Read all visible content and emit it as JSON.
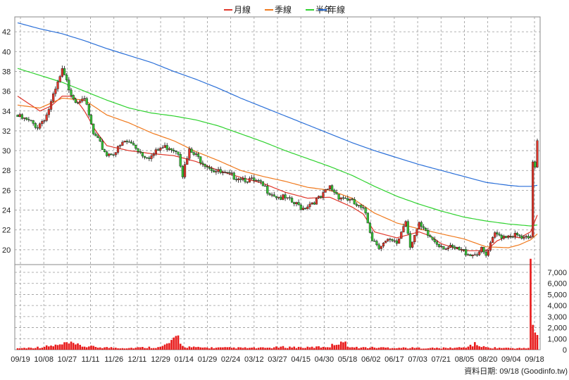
{
  "chart_data": {
    "type": "candlestick",
    "legend": [
      {
        "name": "月線",
        "color": "#e0362a"
      },
      {
        "name": "季線",
        "color": "#f07a1e"
      },
      {
        "name": "半年",
        "color": "#2fd22f"
      },
      {
        "name": "年線",
        "color": "#2a6fd8"
      }
    ],
    "price_axis": {
      "ticks": [
        "20",
        "22",
        "24",
        "26",
        "28",
        "30",
        "32",
        "34",
        "36",
        "38",
        "40",
        "42"
      ],
      "ylim": [
        18.5,
        43.5
      ],
      "side": "left"
    },
    "volume_axis": {
      "ticks": [
        "0",
        "1,000",
        "2,000",
        "3,000",
        "4,000",
        "5,000",
        "6,000",
        "7,000"
      ],
      "ylim": [
        0,
        7700
      ],
      "side": "right"
    },
    "x_ticks": [
      "09/19",
      "10/08",
      "10/27",
      "11/11",
      "11/26",
      "12/11",
      "12/29",
      "01/14",
      "01/29",
      "02/24",
      "03/12",
      "03/27",
      "04/15",
      "04/30",
      "05/18",
      "06/02",
      "06/17",
      "07/03",
      "07/21",
      "08/05",
      "08/20",
      "09/04",
      "09/18"
    ],
    "footer": "資料日期: 09/18 (Goodinfo.tw)",
    "close_anchors": [
      [
        0,
        33.6
      ],
      [
        6,
        33.0
      ],
      [
        9,
        32.6
      ],
      [
        13,
        33.8
      ],
      [
        16,
        35.6
      ],
      [
        20,
        38.2
      ],
      [
        23,
        36.5
      ],
      [
        26,
        35.2
      ],
      [
        29,
        35.6
      ],
      [
        31,
        34.6
      ],
      [
        34,
        31.8
      ],
      [
        37,
        30.8
      ],
      [
        40,
        29.8
      ],
      [
        44,
        30.1
      ],
      [
        48,
        31.1
      ],
      [
        52,
        30.8
      ],
      [
        56,
        29.8
      ],
      [
        60,
        29.6
      ],
      [
        64,
        30.4
      ],
      [
        68,
        30.6
      ],
      [
        72,
        30.1
      ],
      [
        74,
        27.8
      ],
      [
        77,
        30.1
      ],
      [
        80,
        29.6
      ],
      [
        84,
        28.9
      ],
      [
        88,
        28.2
      ],
      [
        92,
        27.8
      ],
      [
        96,
        27.6
      ],
      [
        100,
        27.5
      ],
      [
        104,
        27.2
      ],
      [
        108,
        26.9
      ],
      [
        112,
        26.2
      ],
      [
        116,
        25.6
      ],
      [
        120,
        25.3
      ],
      [
        124,
        24.8
      ],
      [
        128,
        24.4
      ],
      [
        132,
        25.0
      ],
      [
        136,
        25.4
      ],
      [
        140,
        26.5
      ],
      [
        144,
        25.6
      ],
      [
        148,
        25.3
      ],
      [
        152,
        24.6
      ],
      [
        156,
        23.9
      ],
      [
        159,
        21.3
      ],
      [
        162,
        20.6
      ],
      [
        166,
        21.0
      ],
      [
        170,
        20.8
      ],
      [
        174,
        23.2
      ],
      [
        176,
        20.7
      ],
      [
        180,
        22.6
      ],
      [
        184,
        21.6
      ],
      [
        188,
        20.9
      ],
      [
        192,
        20.4
      ],
      [
        196,
        20.2
      ],
      [
        200,
        20.0
      ],
      [
        204,
        19.7
      ],
      [
        208,
        20.1
      ],
      [
        210,
        19.5
      ],
      [
        214,
        21.7
      ],
      [
        218,
        21.6
      ],
      [
        222,
        21.7
      ],
      [
        226,
        21.3
      ],
      [
        230,
        21.2
      ],
      [
        231,
        29.2
      ],
      [
        232,
        28.6
      ],
      [
        233,
        31.4
      ]
    ],
    "volume_anchors": [
      [
        0,
        130
      ],
      [
        10,
        230
      ],
      [
        20,
        450
      ],
      [
        22,
        600
      ],
      [
        30,
        300
      ],
      [
        40,
        200
      ],
      [
        50,
        160
      ],
      [
        60,
        230
      ],
      [
        64,
        220
      ],
      [
        70,
        800
      ],
      [
        72,
        1200
      ],
      [
        74,
        300
      ],
      [
        80,
        200
      ],
      [
        90,
        180
      ],
      [
        100,
        170
      ],
      [
        110,
        160
      ],
      [
        120,
        250
      ],
      [
        130,
        200
      ],
      [
        140,
        300
      ],
      [
        145,
        800
      ],
      [
        150,
        200
      ],
      [
        160,
        200
      ],
      [
        170,
        180
      ],
      [
        180,
        160
      ],
      [
        190,
        150
      ],
      [
        200,
        200
      ],
      [
        205,
        500
      ],
      [
        210,
        200
      ],
      [
        220,
        150
      ],
      [
        228,
        130
      ],
      [
        229,
        200
      ],
      [
        230,
        7600
      ],
      [
        231,
        2000
      ],
      [
        232,
        1700
      ],
      [
        233,
        1100
      ]
    ],
    "moving_averages": [
      {
        "name": "月線",
        "color": "#e0362a",
        "points": [
          [
            0,
            35.5
          ],
          [
            10,
            34.0
          ],
          [
            15,
            34.5
          ],
          [
            20,
            35.5
          ],
          [
            25,
            35.5
          ],
          [
            30,
            34.0
          ],
          [
            35,
            32.0
          ],
          [
            40,
            30.5
          ],
          [
            50,
            30.0
          ],
          [
            60,
            29.7
          ],
          [
            70,
            29.5
          ],
          [
            80,
            28.9
          ],
          [
            90,
            28.0
          ],
          [
            100,
            27.3
          ],
          [
            110,
            26.7
          ],
          [
            120,
            25.8
          ],
          [
            130,
            25.2
          ],
          [
            140,
            25.3
          ],
          [
            150,
            24.3
          ],
          [
            155,
            23.6
          ],
          [
            160,
            21.8
          ],
          [
            170,
            21.2
          ],
          [
            175,
            21.5
          ],
          [
            180,
            21.8
          ],
          [
            185,
            21.4
          ],
          [
            190,
            20.6
          ],
          [
            200,
            19.9
          ],
          [
            210,
            19.9
          ],
          [
            215,
            20.9
          ],
          [
            220,
            21.4
          ],
          [
            225,
            21.2
          ],
          [
            230,
            21.8
          ],
          [
            233,
            23.5
          ]
        ]
      },
      {
        "name": "季線",
        "color": "#f07a1e",
        "points": [
          [
            0,
            34.6
          ],
          [
            10,
            34.3
          ],
          [
            20,
            35.3
          ],
          [
            30,
            35.1
          ],
          [
            40,
            33.6
          ],
          [
            50,
            32.8
          ],
          [
            60,
            31.8
          ],
          [
            70,
            31.0
          ],
          [
            80,
            29.9
          ],
          [
            90,
            29.0
          ],
          [
            100,
            28.0
          ],
          [
            110,
            27.4
          ],
          [
            120,
            26.9
          ],
          [
            130,
            26.3
          ],
          [
            140,
            26.0
          ],
          [
            150,
            25.2
          ],
          [
            160,
            23.7
          ],
          [
            170,
            22.7
          ],
          [
            180,
            22.1
          ],
          [
            190,
            21.6
          ],
          [
            200,
            21.1
          ],
          [
            210,
            20.3
          ],
          [
            220,
            20.2
          ],
          [
            225,
            20.5
          ],
          [
            230,
            21.0
          ],
          [
            233,
            21.6
          ]
        ]
      },
      {
        "name": "半年",
        "color": "#2fd22f",
        "points": [
          [
            0,
            38.3
          ],
          [
            10,
            37.6
          ],
          [
            20,
            36.9
          ],
          [
            30,
            36.0
          ],
          [
            40,
            35.1
          ],
          [
            50,
            34.3
          ],
          [
            60,
            33.8
          ],
          [
            70,
            33.5
          ],
          [
            80,
            33.1
          ],
          [
            90,
            32.5
          ],
          [
            100,
            31.7
          ],
          [
            110,
            30.9
          ],
          [
            120,
            30.0
          ],
          [
            130,
            29.2
          ],
          [
            140,
            28.4
          ],
          [
            150,
            27.5
          ],
          [
            160,
            26.4
          ],
          [
            170,
            25.4
          ],
          [
            180,
            24.6
          ],
          [
            190,
            23.9
          ],
          [
            200,
            23.3
          ],
          [
            210,
            22.9
          ],
          [
            220,
            22.6
          ],
          [
            230,
            22.4
          ],
          [
            233,
            22.5
          ]
        ]
      },
      {
        "name": "年線",
        "color": "#2a6fd8",
        "points": [
          [
            0,
            42.9
          ],
          [
            10,
            42.3
          ],
          [
            20,
            41.8
          ],
          [
            30,
            41.1
          ],
          [
            40,
            40.3
          ],
          [
            50,
            39.6
          ],
          [
            60,
            38.9
          ],
          [
            70,
            38.0
          ],
          [
            80,
            37.2
          ],
          [
            90,
            36.3
          ],
          [
            100,
            35.3
          ],
          [
            110,
            34.4
          ],
          [
            120,
            33.5
          ],
          [
            130,
            32.6
          ],
          [
            140,
            31.7
          ],
          [
            150,
            30.8
          ],
          [
            160,
            30.0
          ],
          [
            170,
            29.3
          ],
          [
            180,
            28.6
          ],
          [
            190,
            28.0
          ],
          [
            200,
            27.4
          ],
          [
            210,
            26.8
          ],
          [
            220,
            26.5
          ],
          [
            225,
            26.4
          ],
          [
            230,
            26.4
          ],
          [
            233,
            26.5
          ]
        ]
      }
    ],
    "bar_count": 234
  }
}
